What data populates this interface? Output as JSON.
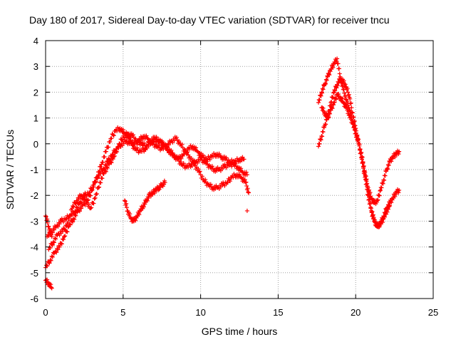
{
  "chart_data": {
    "type": "scatter",
    "title": "Day 180 of 2017, Sidereal Day-to-day VTEC variation (SDTVAR) for receiver tncu",
    "xlabel": "GPS time / hours",
    "ylabel": "SDTVAR / TECUs",
    "xlim": [
      0,
      25
    ],
    "ylim": [
      -6,
      4
    ],
    "xticks": [
      "0",
      "5",
      "10",
      "15",
      "20",
      "25"
    ],
    "yticks": [
      "-6",
      "-5",
      "-4",
      "-3",
      "-2",
      "-1",
      "0",
      "1",
      "2",
      "3",
      "4"
    ],
    "grid": true,
    "marker": "plus",
    "color": "#ff0000",
    "series": [
      {
        "name": "track-a",
        "x": [
          0.0,
          0.3,
          0.6,
          0.9,
          1.2,
          1.5,
          1.8,
          2.1,
          2.4,
          2.7,
          3.0,
          3.3,
          3.6,
          3.9,
          4.2,
          4.5,
          4.8,
          5.1,
          5.4,
          5.7,
          6.0,
          6.3,
          6.6,
          6.9,
          7.2,
          7.5,
          7.8,
          8.1,
          8.4,
          8.7,
          9.0,
          9.3,
          9.6,
          9.9,
          10.2,
          10.5,
          10.8,
          11.1,
          11.4,
          11.7,
          12.0,
          12.3,
          12.6,
          12.9,
          13.1
        ],
        "y": [
          -4.8,
          -4.5,
          -4.2,
          -4.0,
          -3.6,
          -3.2,
          -2.9,
          -2.6,
          -2.4,
          -2.2,
          -1.8,
          -1.3,
          -0.8,
          -0.3,
          0.2,
          0.5,
          0.6,
          0.4,
          0.2,
          0.0,
          0.1,
          0.3,
          0.2,
          0.0,
          -0.1,
          -0.2,
          -0.1,
          0.1,
          0.2,
          0.0,
          -0.3,
          -0.5,
          -0.8,
          -1.1,
          -1.4,
          -1.6,
          -1.7,
          -1.7,
          -1.6,
          -1.5,
          -1.3,
          -1.2,
          -1.3,
          -1.5,
          -1.9
        ]
      },
      {
        "name": "track-b",
        "x": [
          0.1,
          0.4,
          0.7,
          1.0,
          1.3,
          1.6,
          1.9,
          2.2,
          2.5,
          2.8,
          3.1,
          3.4,
          3.7,
          4.0,
          4.3,
          4.6,
          4.9,
          5.2,
          5.5,
          5.8,
          6.1,
          6.4,
          6.7,
          7.0,
          7.3,
          7.6,
          7.9,
          8.2,
          8.5,
          8.8,
          9.1,
          9.4,
          9.7,
          10.0,
          10.3,
          10.6,
          10.9,
          11.2,
          11.5,
          11.8,
          12.1,
          12.4,
          12.7,
          13.0
        ],
        "y": [
          -3.6,
          -3.4,
          -3.2,
          -3.0,
          -2.9,
          -2.8,
          -2.6,
          -2.3,
          -2.0,
          -1.9,
          -1.6,
          -1.2,
          -1.0,
          -0.7,
          -0.4,
          -0.2,
          0.0,
          0.1,
          0.0,
          -0.2,
          -0.3,
          -0.2,
          0.1,
          0.2,
          0.1,
          0.0,
          -0.2,
          -0.4,
          -0.6,
          -0.8,
          -0.9,
          -0.8,
          -0.7,
          -0.6,
          -0.7,
          -0.9,
          -1.0,
          -1.0,
          -0.9,
          -0.8,
          -0.8,
          -0.9,
          -1.1,
          -1.2
        ]
      },
      {
        "name": "track-c",
        "x": [
          0.2,
          0.5,
          0.8,
          1.1,
          1.4,
          1.7,
          2.0,
          2.3,
          2.6,
          2.9,
          3.2,
          3.5,
          3.8,
          4.1,
          4.4,
          4.7,
          5.0,
          5.3,
          5.6,
          5.9,
          6.2,
          6.5,
          6.8,
          7.1,
          7.4,
          7.7,
          8.0,
          8.3,
          8.6,
          8.9,
          9.2,
          9.5,
          9.8,
          10.1,
          10.4,
          10.7,
          11.0,
          11.3,
          11.6,
          11.9,
          12.2,
          12.5,
          12.8
        ],
        "y": [
          -4.1,
          -3.8,
          -3.5,
          -3.4,
          -3.1,
          -2.5,
          -2.2,
          -2.0,
          -2.2,
          -2.5,
          -2.1,
          -1.5,
          -1.1,
          -0.8,
          -0.5,
          -0.1,
          0.3,
          0.4,
          0.3,
          0.1,
          0.0,
          -0.1,
          0.0,
          0.2,
          0.1,
          -0.1,
          -0.3,
          -0.5,
          -0.6,
          -0.4,
          -0.2,
          -0.1,
          -0.3,
          -0.5,
          -0.6,
          -0.5,
          -0.4,
          -0.5,
          -0.6,
          -0.7,
          -0.7,
          -0.6,
          -0.6
        ]
      },
      {
        "name": "track-d",
        "x": [
          0.0,
          0.2,
          0.4
        ],
        "y": [
          -2.8,
          -3.2,
          -3.6
        ]
      },
      {
        "name": "track-e",
        "x": [
          0.0,
          0.2,
          0.4
        ],
        "y": [
          -5.3,
          -5.4,
          -5.6
        ]
      },
      {
        "name": "track-f",
        "x": [
          5.1,
          5.3,
          5.5,
          5.7,
          5.9,
          6.1,
          6.3,
          6.5,
          6.7,
          6.9,
          7.1,
          7.3,
          7.5,
          7.7
        ],
        "y": [
          -2.2,
          -2.6,
          -2.9,
          -3.0,
          -2.8,
          -2.6,
          -2.4,
          -2.2,
          -2.0,
          -1.9,
          -1.8,
          -1.7,
          -1.6,
          -1.5
        ]
      },
      {
        "name": "track-g",
        "x": [
          13.0
        ],
        "y": [
          -2.6
        ]
      },
      {
        "name": "track-h",
        "x": [
          17.6,
          17.8,
          18.0,
          18.2,
          18.4,
          18.6,
          18.8,
          19.0,
          19.2,
          19.4,
          19.6,
          19.8,
          20.0,
          20.2,
          20.4,
          20.6,
          20.8,
          21.0,
          21.2,
          21.4,
          21.6,
          21.8,
          22.0,
          22.2,
          22.4,
          22.6,
          22.8
        ],
        "y": [
          1.6,
          2.0,
          2.3,
          2.6,
          2.9,
          3.1,
          3.3,
          2.6,
          2.1,
          1.7,
          1.3,
          0.9,
          0.5,
          0.0,
          -0.6,
          -1.2,
          -1.7,
          -2.1,
          -2.3,
          -2.2,
          -1.8,
          -1.4,
          -1.0,
          -0.7,
          -0.5,
          -0.4,
          -0.3
        ]
      },
      {
        "name": "track-i",
        "x": [
          17.6,
          17.8,
          18.0,
          18.2,
          18.4,
          18.6,
          18.8,
          19.0,
          19.2,
          19.4,
          19.6,
          19.8,
          20.0,
          20.2,
          20.4,
          20.6,
          20.8,
          21.0,
          21.2,
          21.4,
          21.6,
          21.8,
          22.0,
          22.2,
          22.4,
          22.6,
          22.8
        ],
        "y": [
          -0.1,
          0.3,
          0.7,
          1.1,
          1.6,
          2.0,
          2.3,
          2.5,
          2.4,
          2.2,
          1.8,
          1.2,
          0.6,
          0.0,
          -0.6,
          -1.3,
          -2.0,
          -2.6,
          -3.0,
          -3.2,
          -3.1,
          -2.8,
          -2.5,
          -2.3,
          -2.1,
          -1.9,
          -1.8
        ]
      },
      {
        "name": "track-j",
        "x": [
          17.8,
          18.0,
          18.2,
          18.4,
          18.6,
          18.8,
          19.0,
          19.2,
          19.4,
          19.6,
          19.8,
          20.0,
          20.2,
          20.4,
          20.6,
          20.8,
          21.0,
          21.2,
          21.4,
          21.6,
          21.8,
          22.0,
          22.2
        ],
        "y": [
          1.4,
          1.2,
          1.0,
          1.3,
          1.6,
          1.9,
          1.8,
          1.6,
          1.4,
          1.1,
          0.8,
          0.4,
          0.0,
          -0.5,
          -1.1,
          -1.8,
          -2.5,
          -3.0,
          -3.2,
          -3.1,
          -2.9,
          -2.6,
          -2.4
        ]
      }
    ]
  }
}
